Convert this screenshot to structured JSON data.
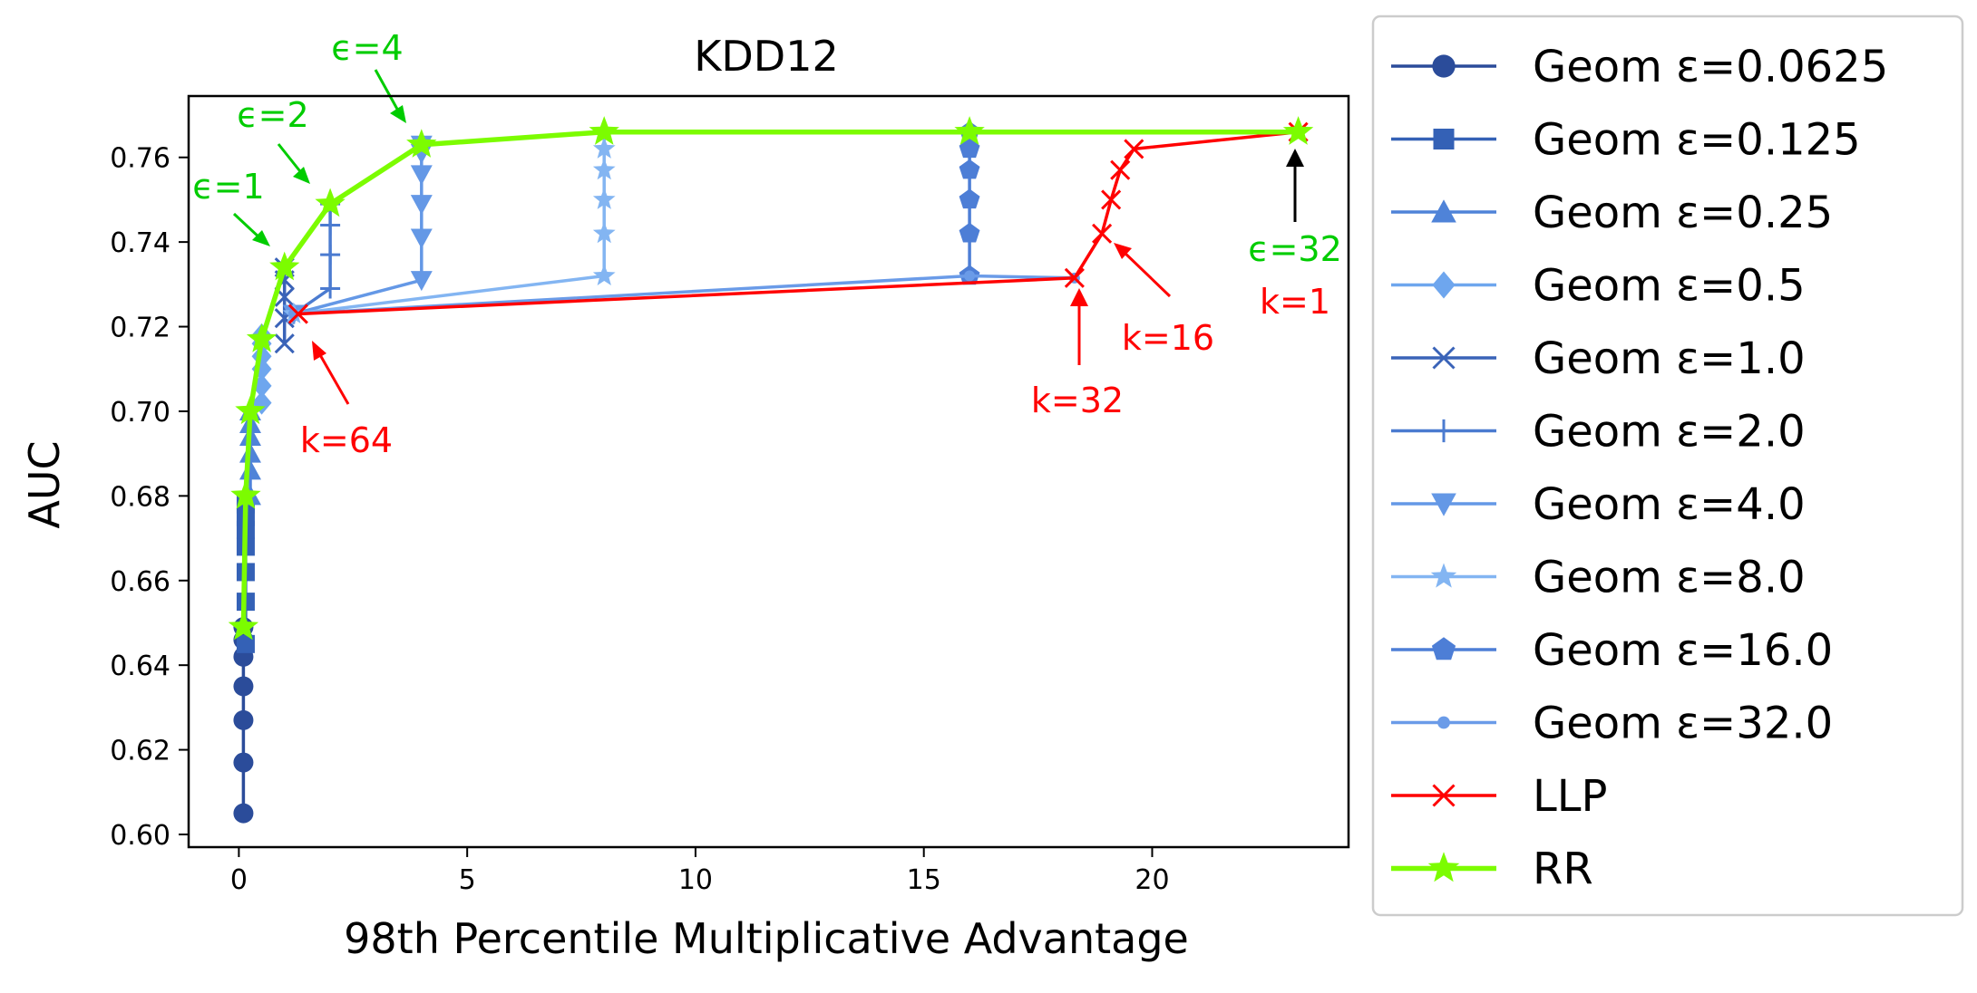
{
  "chart_data": {
    "type": "line",
    "title": "KDD12",
    "xlabel": "98th Percentile Multiplicative Advantage",
    "ylabel": "AUC",
    "xlim": [
      -1.1,
      24.3
    ],
    "ylim": [
      0.597,
      0.7745
    ],
    "xticks": [
      0,
      5,
      10,
      15,
      20
    ],
    "yticks": [
      0.6,
      0.62,
      0.64,
      0.66,
      0.68,
      0.7,
      0.72,
      0.74,
      0.76
    ],
    "ytick_labels": [
      "0.60",
      "0.62",
      "0.64",
      "0.66",
      "0.68",
      "0.70",
      "0.72",
      "0.74",
      "0.76"
    ],
    "grid": false,
    "legend_position": "outside-right",
    "series": [
      {
        "name": "Geom ε=0.0625",
        "marker": "circle",
        "color": "#2b4c9a",
        "x": [
          0.1,
          0.1,
          0.1,
          0.1,
          0.1,
          0.1,
          0.1
        ],
        "y": [
          0.605,
          0.617,
          0.627,
          0.635,
          0.642,
          0.646,
          0.649
        ]
      },
      {
        "name": "Geom ε=0.125",
        "marker": "square",
        "color": "#3461b6",
        "x": [
          0.15,
          0.15,
          0.15,
          0.15,
          0.15,
          0.15,
          0.15
        ],
        "y": [
          0.645,
          0.655,
          0.662,
          0.668,
          0.672,
          0.675,
          0.678
        ]
      },
      {
        "name": "Geom ε=0.25",
        "marker": "triangle-up",
        "color": "#4f83d8",
        "x": [
          0.25,
          0.25,
          0.25,
          0.25,
          0.25,
          0.25
        ],
        "y": [
          0.68,
          0.686,
          0.69,
          0.694,
          0.697,
          0.7
        ]
      },
      {
        "name": "Geom ε=0.5",
        "marker": "diamond",
        "color": "#6ea6ee",
        "x": [
          0.5,
          0.5,
          0.5,
          0.5,
          0.5,
          0.5
        ],
        "y": [
          0.702,
          0.706,
          0.71,
          0.713,
          0.716,
          0.718
        ]
      },
      {
        "name": "Geom ε=1.0",
        "marker": "x",
        "color": "#3a63b8",
        "x": [
          1.0,
          1.0,
          1.0,
          1.0,
          1.0
        ],
        "y": [
          0.716,
          0.722,
          0.727,
          0.731,
          0.734
        ]
      },
      {
        "name": "Geom ε=2.0",
        "marker": "plus",
        "color": "#4b7bd0",
        "x": [
          1.2,
          2.0,
          2.0,
          2.0,
          2.0
        ],
        "y": [
          0.723,
          0.729,
          0.737,
          0.744,
          0.749
        ]
      },
      {
        "name": "Geom ε=4.0",
        "marker": "triangle-down",
        "color": "#6498e6",
        "x": [
          1.2,
          4.0,
          4.0,
          4.0,
          4.0,
          4.0,
          4.0
        ],
        "y": [
          0.723,
          0.731,
          0.741,
          0.749,
          0.756,
          0.761,
          0.763
        ]
      },
      {
        "name": "Geom ε=8.0",
        "marker": "star",
        "color": "#83b5f2",
        "x": [
          1.2,
          8.0,
          8.0,
          8.0,
          8.0,
          8.0,
          8.0
        ],
        "y": [
          0.723,
          0.732,
          0.742,
          0.75,
          0.757,
          0.762,
          0.766
        ]
      },
      {
        "name": "Geom ε=16.0",
        "marker": "pentagon",
        "color": "#4d7ed6",
        "x": [
          16.0,
          16.0,
          16.0,
          16.0,
          16.0,
          16.0
        ],
        "y": [
          0.732,
          0.742,
          0.75,
          0.757,
          0.762,
          0.766
        ]
      },
      {
        "name": "Geom ε=32.0",
        "marker": "point",
        "color": "#6a9be8",
        "x": [
          1.2,
          16.0,
          18.3
        ],
        "y": [
          0.723,
          0.732,
          0.7315
        ]
      },
      {
        "name": "LLP",
        "marker": "x",
        "color": "#ff0000",
        "x": [
          1.3,
          18.3,
          18.9,
          19.1,
          19.3,
          19.6,
          23.2
        ],
        "y": [
          0.723,
          0.7315,
          0.742,
          0.75,
          0.757,
          0.762,
          0.766
        ]
      },
      {
        "name": "RR",
        "marker": "star",
        "color": "#7cfc00",
        "x": [
          0.1,
          0.15,
          0.25,
          0.5,
          1.0,
          2.0,
          4.0,
          8.0,
          16.0,
          23.2
        ],
        "y": [
          0.649,
          0.68,
          0.7,
          0.717,
          0.734,
          0.749,
          0.763,
          0.766,
          0.766,
          0.766
        ]
      }
    ],
    "annotations": [
      {
        "text": "ϵ=1",
        "color": "#00cc00"
      },
      {
        "text": "ϵ=2",
        "color": "#00cc00"
      },
      {
        "text": "ϵ=4",
        "color": "#00cc00"
      },
      {
        "text": "ϵ=32",
        "color": "#00cc00"
      },
      {
        "text": "k=1",
        "color": "#ff0000"
      },
      {
        "text": "k=16",
        "color": "#ff0000"
      },
      {
        "text": "k=32",
        "color": "#ff0000"
      },
      {
        "text": "k=64",
        "color": "#ff0000"
      }
    ]
  }
}
